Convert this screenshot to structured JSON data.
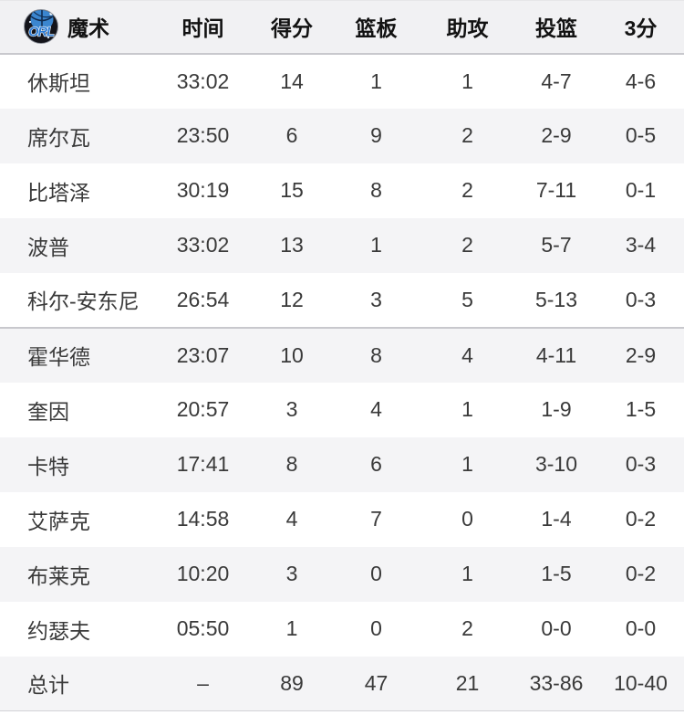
{
  "team": {
    "name": "魔术",
    "logo_text": "ORL"
  },
  "columns": {
    "time": "时间",
    "points": "得分",
    "rebounds": "篮板",
    "assists": "助攻",
    "fg": "投篮",
    "three": "3分"
  },
  "players": [
    {
      "name": "休斯坦",
      "time": "33:02",
      "points": "14",
      "rebounds": "1",
      "assists": "1",
      "fg": "4-7",
      "three": "4-6"
    },
    {
      "name": "席尔瓦",
      "time": "23:50",
      "points": "6",
      "rebounds": "9",
      "assists": "2",
      "fg": "2-9",
      "three": "0-5"
    },
    {
      "name": "比塔泽",
      "time": "30:19",
      "points": "15",
      "rebounds": "8",
      "assists": "2",
      "fg": "7-11",
      "three": "0-1"
    },
    {
      "name": "波普",
      "time": "33:02",
      "points": "13",
      "rebounds": "1",
      "assists": "2",
      "fg": "5-7",
      "three": "3-4"
    },
    {
      "name": "科尔-安东尼",
      "time": "26:54",
      "points": "12",
      "rebounds": "3",
      "assists": "5",
      "fg": "5-13",
      "three": "0-3"
    },
    {
      "name": "霍华德",
      "time": "23:07",
      "points": "10",
      "rebounds": "8",
      "assists": "4",
      "fg": "4-11",
      "three": "2-9"
    },
    {
      "name": "奎因",
      "time": "20:57",
      "points": "3",
      "rebounds": "4",
      "assists": "1",
      "fg": "1-9",
      "three": "1-5"
    },
    {
      "name": "卡特",
      "time": "17:41",
      "points": "8",
      "rebounds": "6",
      "assists": "1",
      "fg": "3-10",
      "three": "0-3"
    },
    {
      "name": "艾萨克",
      "time": "14:58",
      "points": "4",
      "rebounds": "7",
      "assists": "0",
      "fg": "1-4",
      "three": "0-2"
    },
    {
      "name": "布莱克",
      "time": "10:20",
      "points": "3",
      "rebounds": "0",
      "assists": "1",
      "fg": "1-5",
      "three": "0-2"
    },
    {
      "name": "约瑟夫",
      "time": "05:50",
      "points": "1",
      "rebounds": "0",
      "assists": "2",
      "fg": "0-0",
      "three": "0-0"
    }
  ],
  "total": {
    "name": "总计",
    "time": "–",
    "points": "89",
    "rebounds": "47",
    "assists": "21",
    "fg": "33-86",
    "three": "10-40"
  },
  "colors": {
    "header_bg": "#f1f1f3",
    "row_alt_bg": "#f4f4f6",
    "divider": "#c8c8cd",
    "text": "#3a3a3a",
    "header_text": "#121212",
    "logo_blue": "#2d7cd4",
    "logo_ball_blue": "#3b86cf",
    "logo_dark": "#14141a"
  }
}
